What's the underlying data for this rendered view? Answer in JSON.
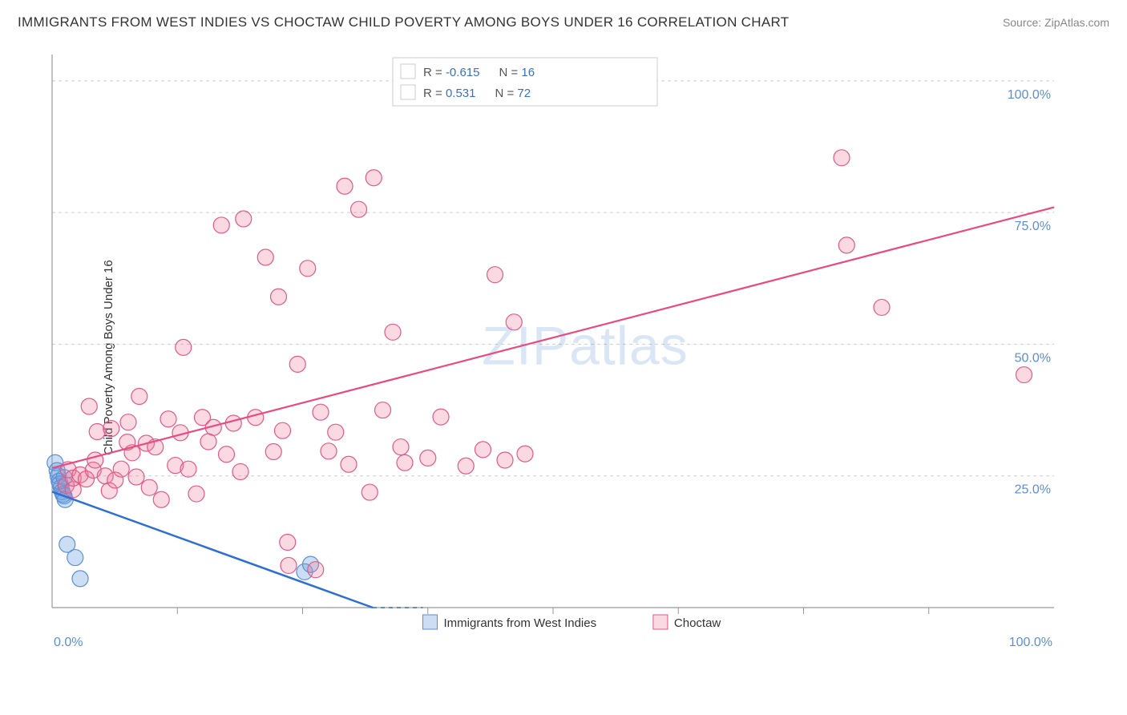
{
  "title": "IMMIGRANTS FROM WEST INDIES VS CHOCTAW CHILD POVERTY AMONG BOYS UNDER 16 CORRELATION CHART",
  "source_label": "Source:",
  "source_name": "ZipAtlas.com",
  "ylabel": "Child Poverty Among Boys Under 16",
  "watermark_a": "ZIP",
  "watermark_b": "atlas",
  "chart": {
    "type": "scatter",
    "background_color": "#ffffff",
    "grid_color": "#cccccc",
    "axis_color": "#999999",
    "tick_label_color": "#5a8fd6",
    "marker_radius": 10,
    "xlim": [
      0,
      100
    ],
    "ylim": [
      0,
      105
    ],
    "y_ticks": [
      25,
      50,
      75,
      100
    ],
    "y_tick_labels": [
      "25.0%",
      "50.0%",
      "75.0%",
      "100.0%"
    ],
    "x_ticks": [
      0,
      100
    ],
    "x_tick_labels": [
      "0.0%",
      "100.0%"
    ],
    "x_minor_ticks": [
      12.5,
      25,
      37.5,
      50,
      62.5,
      75,
      87.5
    ],
    "series": [
      {
        "key": "blue",
        "label": "Immigrants from West Indies",
        "fill": "rgba(110,160,220,0.35)",
        "stroke": "#5a8fd6",
        "trend_stroke": "#2d6fd2",
        "R": "-0.615",
        "N": "16",
        "trend": {
          "x1": 0,
          "y1": 22,
          "x2": 32,
          "y2": 0,
          "dash_extend_x": 37
        },
        "points": [
          [
            0.3,
            27.5
          ],
          [
            0.5,
            26
          ],
          [
            0.6,
            25
          ],
          [
            0.7,
            24
          ],
          [
            0.8,
            23.5
          ],
          [
            0.9,
            22.8
          ],
          [
            1.0,
            22
          ],
          [
            1.1,
            21.5
          ],
          [
            1.2,
            21.2
          ],
          [
            1.2,
            24.7
          ],
          [
            1.3,
            20.5
          ],
          [
            1.5,
            12
          ],
          [
            2.3,
            9.5
          ],
          [
            2.8,
            5.5
          ],
          [
            25.2,
            6.8
          ],
          [
            25.8,
            8.2
          ]
        ]
      },
      {
        "key": "pink",
        "label": "Choctaw",
        "fill": "rgba(240,130,160,0.30)",
        "stroke": "#e05a88",
        "trend_stroke": "#e84a82",
        "R": "0.531",
        "N": "72",
        "trend": {
          "x1": 0,
          "y1": 26.5,
          "x2": 100,
          "y2": 76
        },
        "points": [
          [
            1.4,
            23.2
          ],
          [
            1.6,
            26.2
          ],
          [
            2.1,
            22.4
          ],
          [
            2.1,
            24.6
          ],
          [
            2.8,
            25.2
          ],
          [
            3.4,
            24.4
          ],
          [
            3.7,
            38.2
          ],
          [
            4.1,
            26.1
          ],
          [
            4.3,
            28.0
          ],
          [
            4.5,
            33.4
          ],
          [
            5.3,
            25.0
          ],
          [
            5.7,
            22.2
          ],
          [
            5.9,
            34.0
          ],
          [
            6.3,
            24.2
          ],
          [
            6.9,
            26.3
          ],
          [
            7.5,
            31.4
          ],
          [
            7.6,
            35.2
          ],
          [
            8.0,
            29.4
          ],
          [
            8.4,
            24.8
          ],
          [
            8.7,
            40.1
          ],
          [
            9.4,
            31.2
          ],
          [
            9.7,
            22.8
          ],
          [
            10.3,
            30.5
          ],
          [
            10.9,
            20.5
          ],
          [
            11.6,
            35.8
          ],
          [
            12.3,
            27.0
          ],
          [
            12.8,
            33.2
          ],
          [
            13.1,
            49.4
          ],
          [
            13.6,
            26.3
          ],
          [
            14.4,
            21.6
          ],
          [
            15.0,
            36.1
          ],
          [
            15.6,
            31.5
          ],
          [
            16.1,
            34.2
          ],
          [
            16.9,
            72.6
          ],
          [
            17.4,
            29.1
          ],
          [
            18.1,
            35.0
          ],
          [
            18.8,
            25.8
          ],
          [
            19.1,
            73.8
          ],
          [
            20.3,
            36.1
          ],
          [
            21.3,
            66.5
          ],
          [
            22.1,
            29.6
          ],
          [
            22.6,
            59.0
          ],
          [
            23.0,
            33.6
          ],
          [
            23.5,
            12.4
          ],
          [
            24.5,
            46.2
          ],
          [
            25.5,
            64.4
          ],
          [
            26.8,
            37.1
          ],
          [
            27.6,
            29.7
          ],
          [
            28.3,
            33.3
          ],
          [
            29.2,
            80.0
          ],
          [
            29.6,
            27.2
          ],
          [
            30.6,
            75.6
          ],
          [
            31.7,
            21.9
          ],
          [
            32.1,
            81.6
          ],
          [
            33.0,
            37.5
          ],
          [
            34.0,
            52.3
          ],
          [
            34.8,
            30.5
          ],
          [
            35.2,
            27.5
          ],
          [
            37.5,
            28.4
          ],
          [
            38.8,
            36.2
          ],
          [
            41.3,
            26.9
          ],
          [
            43.0,
            30.0
          ],
          [
            44.2,
            63.2
          ],
          [
            45.2,
            28.0
          ],
          [
            46.1,
            54.2
          ],
          [
            47.2,
            29.2
          ],
          [
            78.8,
            85.4
          ],
          [
            79.3,
            68.8
          ],
          [
            82.8,
            57.0
          ],
          [
            97.0,
            44.2
          ],
          [
            23.6,
            8.0
          ],
          [
            26.3,
            7.2
          ]
        ]
      }
    ]
  }
}
